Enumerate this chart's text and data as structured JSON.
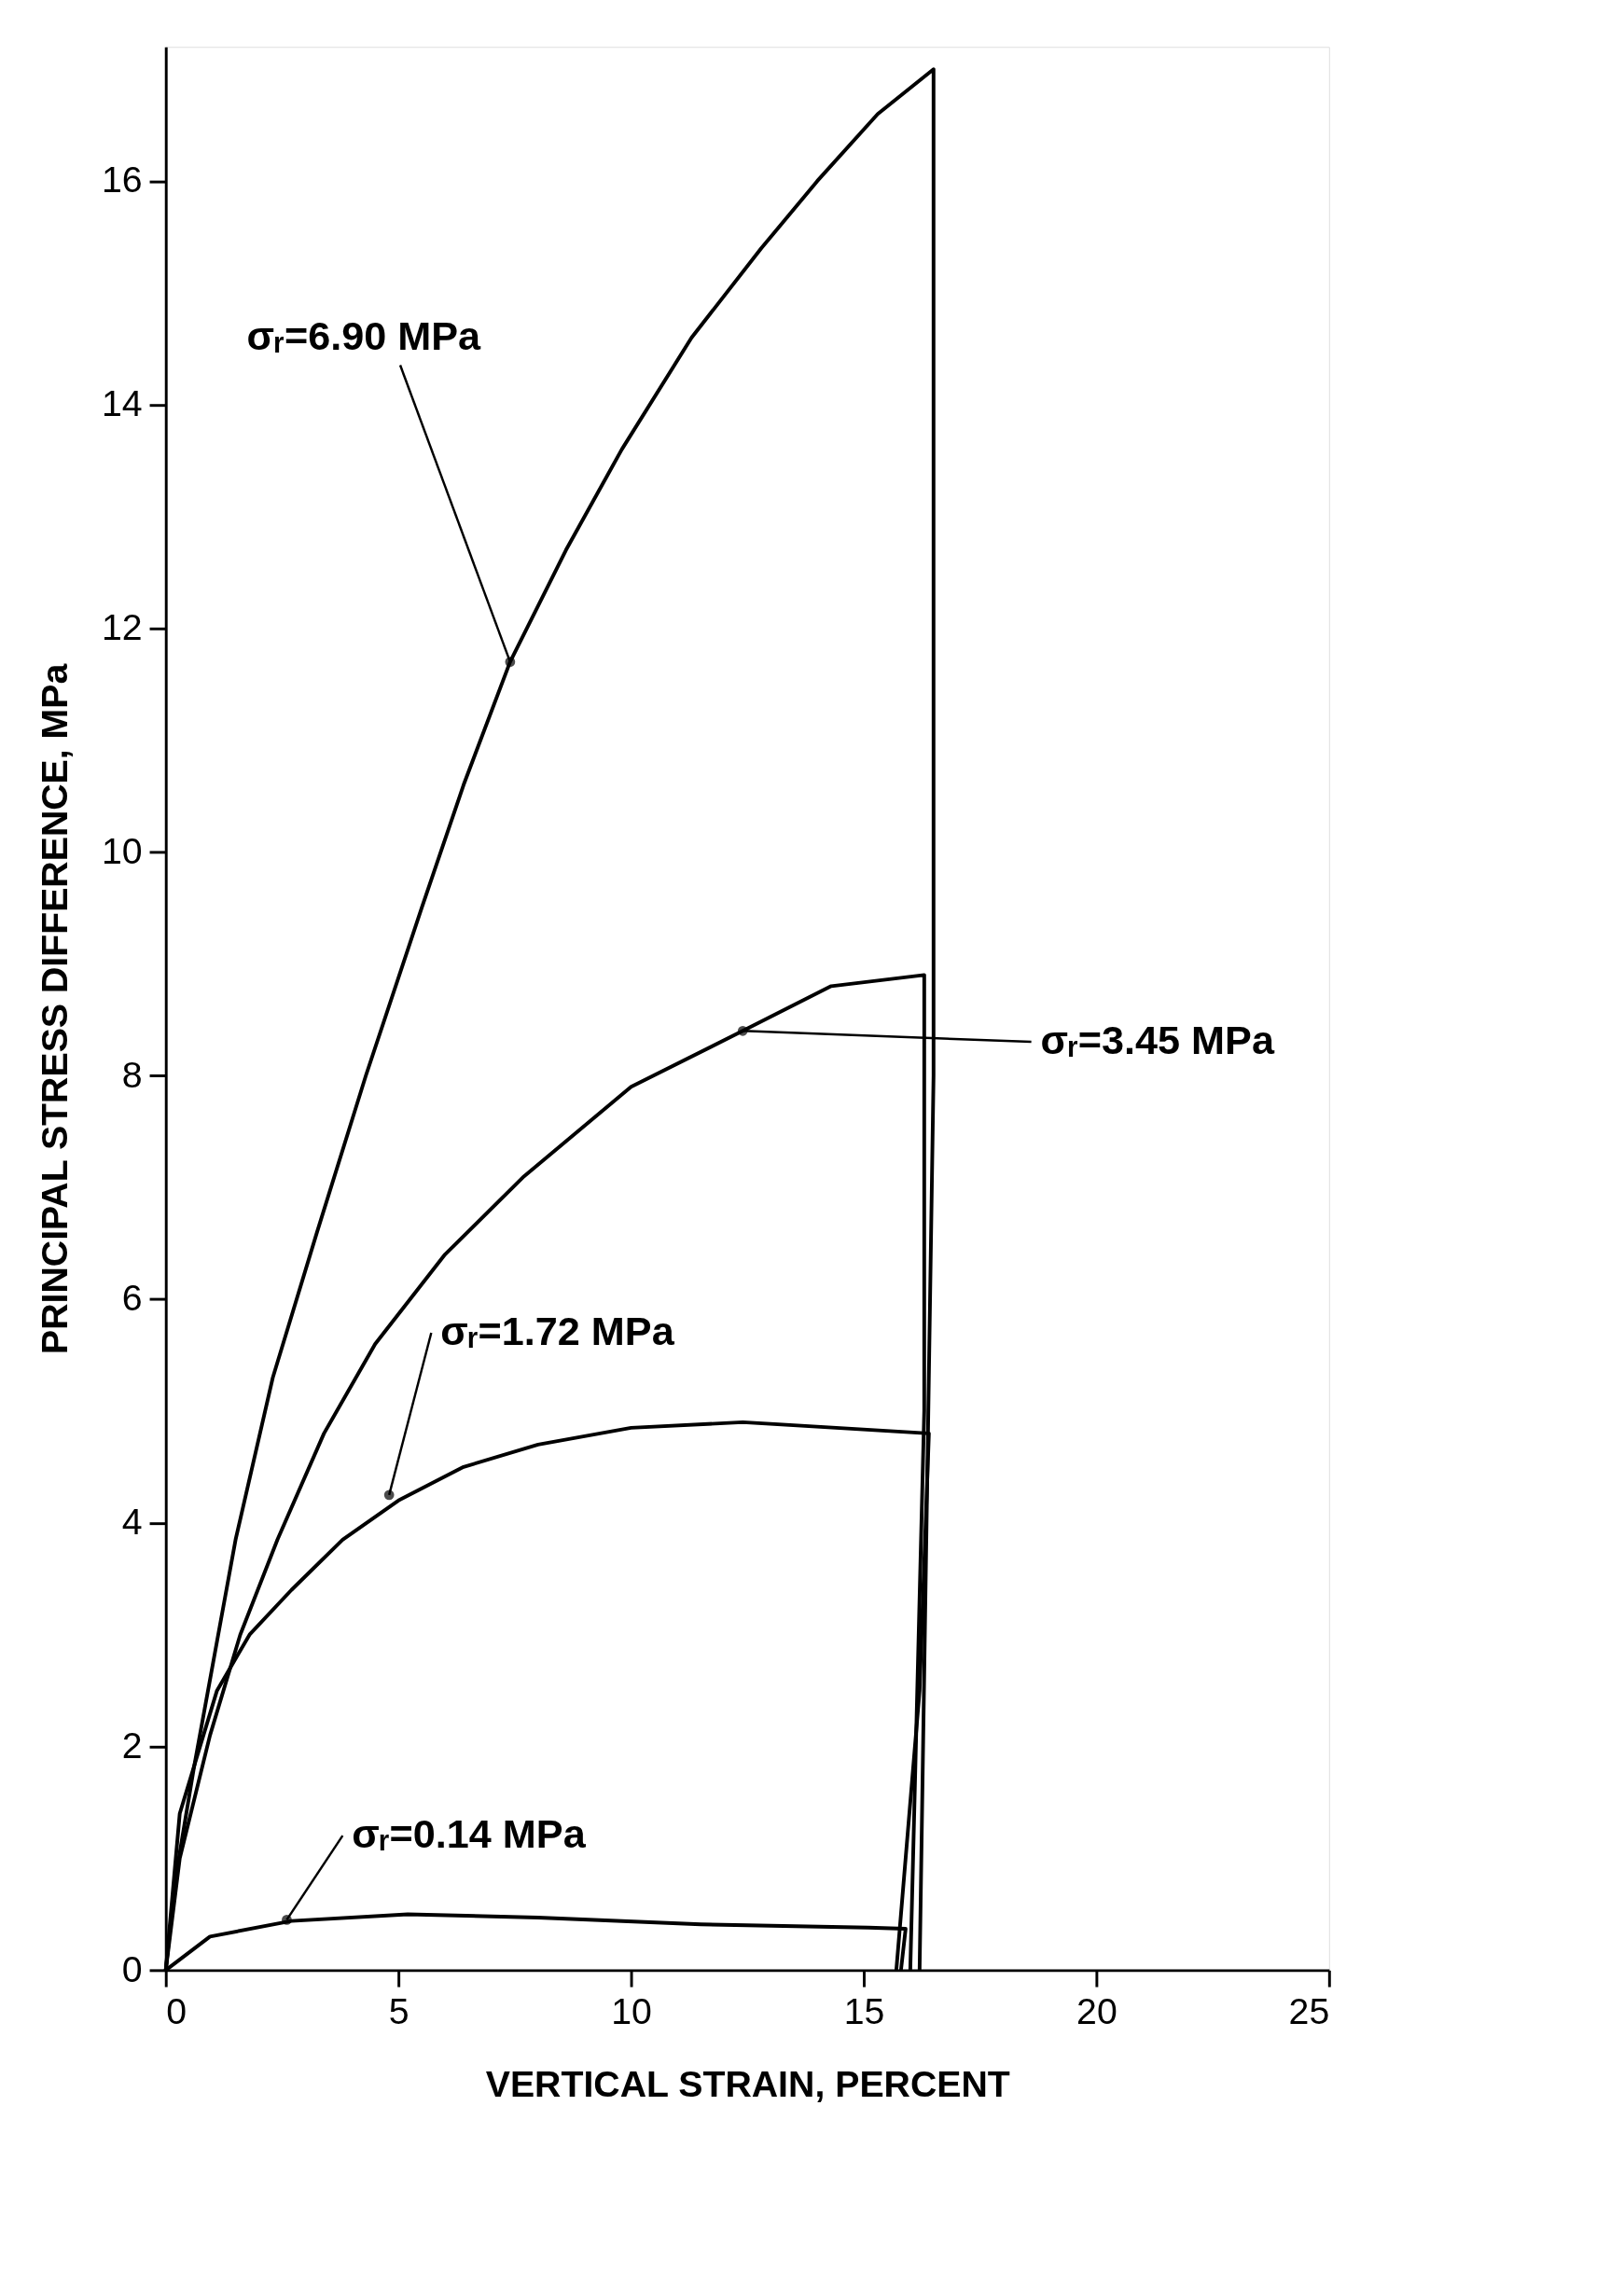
{
  "chart_data": {
    "type": "line",
    "xlabel": "VERTICAL STRAIN, PERCENT",
    "ylabel": "PRINCIPAL STRESS DIFFERENCE, MPa",
    "xlim": [
      0,
      25
    ],
    "ylim": [
      0,
      17.2
    ],
    "xticks": [
      0,
      5,
      10,
      15,
      20,
      25
    ],
    "yticks": [
      0,
      2,
      4,
      6,
      8,
      10,
      12,
      14,
      16
    ],
    "grid": false,
    "marker": "none",
    "line_style": "solid",
    "series": [
      {
        "color": "#000000",
        "x": [
          0,
          0.2,
          0.6,
          1.5,
          2.3,
          3.25,
          4.3,
          5.5,
          6.4,
          7.4,
          8.6,
          9.8,
          11.3,
          12.8,
          14.0,
          15.3,
          16.5,
          16.5,
          16.2
        ],
        "values": [
          0,
          0.8,
          1.8,
          3.85,
          5.3,
          6.6,
          8.0,
          9.5,
          10.6,
          11.7,
          12.7,
          13.6,
          14.6,
          15.4,
          16.0,
          16.6,
          17.0,
          8,
          0
        ]
      },
      {
        "color": "#000000",
        "x": [
          0,
          0.3,
          0.95,
          1.6,
          2.4,
          3.4,
          4.5,
          6.0,
          7.7,
          10,
          12.4,
          14.3,
          16.3,
          16.3,
          16.0
        ],
        "values": [
          0,
          1.0,
          2.1,
          3.0,
          3.85,
          4.8,
          5.6,
          6.4,
          7.1,
          7.9,
          8.4,
          8.8,
          8.9,
          5,
          0
        ]
      },
      {
        "color": "#000000",
        "x": [
          0,
          0.3,
          1.1,
          1.8,
          2.7,
          3.8,
          5.0,
          6.4,
          8.0,
          10.0,
          12.4,
          16.4,
          16.2,
          15.7
        ],
        "values": [
          0,
          1.4,
          2.5,
          3.0,
          3.4,
          3.85,
          4.2,
          4.5,
          4.7,
          4.85,
          4.9,
          4.8,
          2.5,
          0
        ]
      },
      {
        "color": "#000000",
        "x": [
          0,
          0.95,
          2.7,
          5.2,
          8,
          11.5,
          15.1,
          15.9,
          15.8
        ],
        "values": [
          0,
          0.3,
          0.44,
          0.5,
          0.47,
          0.41,
          0.38,
          0.37,
          0
        ]
      }
    ],
    "annotations": [
      {
        "text": "σᵣ=6.90 MPa",
        "x": 7.4,
        "y": 11.7
      },
      {
        "text": "σᵣ=3.45 MPa",
        "x": 12.4,
        "y": 8.4
      },
      {
        "text": "σᵣ=1.72 MPa",
        "x": 4.8,
        "y": 4.25
      },
      {
        "text": "σᵣ=0.14 MPa",
        "x": 2.6,
        "y": 0.45
      }
    ]
  }
}
